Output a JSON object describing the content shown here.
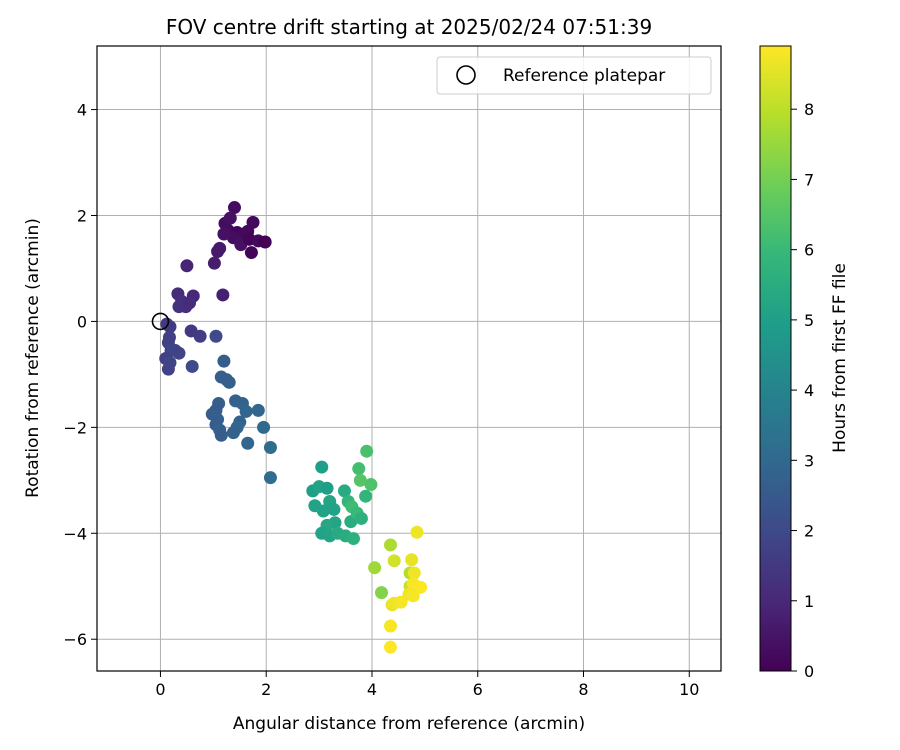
{
  "chart_data": {
    "type": "scatter",
    "title": "FOV centre drift starting at 2025/02/24 07:51:39",
    "xlabel": "Angular distance from reference (arcmin)",
    "ylabel": "Rotation from reference (arcmin)",
    "xlim": [
      -1.2,
      10.6
    ],
    "ylim": [
      -6.6,
      5.2
    ],
    "xticks": [
      0,
      2,
      4,
      6,
      8,
      10
    ],
    "yticks": [
      -6,
      -4,
      -2,
      0,
      2,
      4
    ],
    "xtick_labels": [
      "0",
      "2",
      "4",
      "6",
      "8",
      "10"
    ],
    "ytick_labels": [
      "−6",
      "−4",
      "−2",
      "0",
      "2",
      "4"
    ],
    "grid": true,
    "legend": {
      "position": "top-right",
      "entries": [
        "Reference platepar"
      ]
    },
    "reference_point": {
      "x": 0,
      "y": 0
    },
    "colorbar": {
      "label": "Hours from first FF file",
      "min": 0,
      "max": 8.9,
      "ticks": [
        0,
        1,
        2,
        3,
        4,
        5,
        6,
        7,
        8
      ],
      "tick_labels": [
        "0",
        "1",
        "2",
        "3",
        "4",
        "5",
        "6",
        "7",
        "8"
      ],
      "colormap": "viridis",
      "colors": [
        "#440154",
        "#482878",
        "#3e4989",
        "#31688e",
        "#26828e",
        "#1f9e89",
        "#35b779",
        "#6ece58",
        "#b5de2b",
        "#fde725"
      ]
    },
    "points": [
      {
        "x": 1.4,
        "y": 2.15,
        "h": 0.3
      },
      {
        "x": 1.22,
        "y": 1.85,
        "h": 0.3
      },
      {
        "x": 1.32,
        "y": 1.95,
        "h": 0.4
      },
      {
        "x": 1.75,
        "y": 1.87,
        "h": 0.2
      },
      {
        "x": 1.28,
        "y": 1.72,
        "h": 0.3
      },
      {
        "x": 1.45,
        "y": 1.68,
        "h": 0.1
      },
      {
        "x": 1.55,
        "y": 1.62,
        "h": 0.2
      },
      {
        "x": 1.65,
        "y": 1.7,
        "h": 0.2
      },
      {
        "x": 1.38,
        "y": 1.58,
        "h": 0.3
      },
      {
        "x": 1.52,
        "y": 1.45,
        "h": 0.4
      },
      {
        "x": 1.68,
        "y": 1.55,
        "h": 0.1
      },
      {
        "x": 1.85,
        "y": 1.52,
        "h": 0.2
      },
      {
        "x": 1.98,
        "y": 1.5,
        "h": 0.0
      },
      {
        "x": 1.72,
        "y": 1.3,
        "h": 0.1
      },
      {
        "x": 1.2,
        "y": 1.65,
        "h": 0.4
      },
      {
        "x": 1.12,
        "y": 1.38,
        "h": 0.6
      },
      {
        "x": 1.08,
        "y": 1.32,
        "h": 0.6
      },
      {
        "x": 1.02,
        "y": 1.1,
        "h": 0.7
      },
      {
        "x": 0.5,
        "y": 1.05,
        "h": 0.9
      },
      {
        "x": 1.18,
        "y": 0.5,
        "h": 0.8
      },
      {
        "x": 0.33,
        "y": 0.52,
        "h": 1.1
      },
      {
        "x": 0.62,
        "y": 0.48,
        "h": 1.0
      },
      {
        "x": 0.4,
        "y": 0.38,
        "h": 1.2
      },
      {
        "x": 0.35,
        "y": 0.28,
        "h": 1.3
      },
      {
        "x": 0.48,
        "y": 0.28,
        "h": 1.2
      },
      {
        "x": 0.55,
        "y": 0.35,
        "h": 1.1
      },
      {
        "x": 0.18,
        "y": -0.1,
        "h": 1.6
      },
      {
        "x": 0.12,
        "y": -0.05,
        "h": 1.5
      },
      {
        "x": 0.17,
        "y": -0.3,
        "h": 1.7
      },
      {
        "x": 0.15,
        "y": -0.4,
        "h": 1.7
      },
      {
        "x": 0.58,
        "y": -0.18,
        "h": 1.5
      },
      {
        "x": 0.75,
        "y": -0.28,
        "h": 1.6
      },
      {
        "x": 1.05,
        "y": -0.28,
        "h": 2.0
      },
      {
        "x": 0.2,
        "y": -0.55,
        "h": 1.8
      },
      {
        "x": 0.28,
        "y": -0.55,
        "h": 1.9
      },
      {
        "x": 0.35,
        "y": -0.6,
        "h": 1.8
      },
      {
        "x": 0.1,
        "y": -0.7,
        "h": 1.7
      },
      {
        "x": 0.18,
        "y": -0.78,
        "h": 1.9
      },
      {
        "x": 0.15,
        "y": -0.9,
        "h": 1.8
      },
      {
        "x": 0.6,
        "y": -0.85,
        "h": 2.0
      },
      {
        "x": 1.2,
        "y": -0.75,
        "h": 2.6
      },
      {
        "x": 1.15,
        "y": -1.05,
        "h": 2.7
      },
      {
        "x": 1.25,
        "y": -1.1,
        "h": 2.6
      },
      {
        "x": 1.3,
        "y": -1.15,
        "h": 2.7
      },
      {
        "x": 1.1,
        "y": -1.55,
        "h": 2.6
      },
      {
        "x": 1.05,
        "y": -1.68,
        "h": 2.6
      },
      {
        "x": 0.98,
        "y": -1.75,
        "h": 2.6
      },
      {
        "x": 1.08,
        "y": -1.85,
        "h": 2.7
      },
      {
        "x": 1.05,
        "y": -1.95,
        "h": 2.6
      },
      {
        "x": 1.12,
        "y": -2.05,
        "h": 2.7
      },
      {
        "x": 1.15,
        "y": -2.15,
        "h": 2.6
      },
      {
        "x": 1.42,
        "y": -1.5,
        "h": 2.8
      },
      {
        "x": 1.55,
        "y": -1.55,
        "h": 2.8
      },
      {
        "x": 1.62,
        "y": -1.7,
        "h": 2.9
      },
      {
        "x": 1.5,
        "y": -1.9,
        "h": 2.8
      },
      {
        "x": 1.45,
        "y": -2.0,
        "h": 2.9
      },
      {
        "x": 1.38,
        "y": -2.1,
        "h": 2.8
      },
      {
        "x": 1.85,
        "y": -1.68,
        "h": 2.9
      },
      {
        "x": 1.65,
        "y": -2.3,
        "h": 2.9
      },
      {
        "x": 1.95,
        "y": -2.0,
        "h": 3.0
      },
      {
        "x": 2.08,
        "y": -2.38,
        "h": 3.1
      },
      {
        "x": 2.08,
        "y": -2.95,
        "h": 3.1
      },
      {
        "x": 3.05,
        "y": -2.75,
        "h": 5.0
      },
      {
        "x": 2.88,
        "y": -3.2,
        "h": 5.0
      },
      {
        "x": 3.0,
        "y": -3.12,
        "h": 5.1
      },
      {
        "x": 3.15,
        "y": -3.15,
        "h": 5.0
      },
      {
        "x": 2.92,
        "y": -3.48,
        "h": 5.1
      },
      {
        "x": 3.08,
        "y": -3.58,
        "h": 5.1
      },
      {
        "x": 3.2,
        "y": -3.4,
        "h": 5.2
      },
      {
        "x": 3.28,
        "y": -3.55,
        "h": 5.1
      },
      {
        "x": 3.3,
        "y": -3.8,
        "h": 5.2
      },
      {
        "x": 3.15,
        "y": -3.85,
        "h": 5.3
      },
      {
        "x": 3.05,
        "y": -4.0,
        "h": 5.1
      },
      {
        "x": 3.2,
        "y": -4.05,
        "h": 5.2
      },
      {
        "x": 3.35,
        "y": -4.0,
        "h": 5.4
      },
      {
        "x": 3.5,
        "y": -4.05,
        "h": 5.5
      },
      {
        "x": 3.65,
        "y": -4.1,
        "h": 5.6
      },
      {
        "x": 3.48,
        "y": -3.2,
        "h": 5.4
      },
      {
        "x": 3.55,
        "y": -3.4,
        "h": 5.8
      },
      {
        "x": 3.62,
        "y": -3.5,
        "h": 6.1
      },
      {
        "x": 3.6,
        "y": -3.78,
        "h": 5.5
      },
      {
        "x": 3.72,
        "y": -3.62,
        "h": 6.0
      },
      {
        "x": 3.8,
        "y": -3.72,
        "h": 5.6
      },
      {
        "x": 3.75,
        "y": -2.78,
        "h": 6.2
      },
      {
        "x": 3.88,
        "y": -3.3,
        "h": 5.8
      },
      {
        "x": 3.78,
        "y": -3.0,
        "h": 6.5
      },
      {
        "x": 3.9,
        "y": -2.45,
        "h": 6.3
      },
      {
        "x": 3.98,
        "y": -3.08,
        "h": 6.4
      },
      {
        "x": 4.05,
        "y": -4.65,
        "h": 7.6
      },
      {
        "x": 4.18,
        "y": -5.12,
        "h": 7.2
      },
      {
        "x": 4.35,
        "y": -4.22,
        "h": 7.8
      },
      {
        "x": 4.42,
        "y": -4.52,
        "h": 8.3
      },
      {
        "x": 4.38,
        "y": -5.35,
        "h": 8.6
      },
      {
        "x": 4.42,
        "y": -5.32,
        "h": 8.7
      },
      {
        "x": 4.55,
        "y": -5.3,
        "h": 8.8
      },
      {
        "x": 4.35,
        "y": -5.75,
        "h": 8.8
      },
      {
        "x": 4.35,
        "y": -6.15,
        "h": 8.9
      },
      {
        "x": 4.72,
        "y": -4.75,
        "h": 7.9
      },
      {
        "x": 4.75,
        "y": -4.5,
        "h": 8.6
      },
      {
        "x": 4.8,
        "y": -4.75,
        "h": 8.7
      },
      {
        "x": 4.72,
        "y": -5.0,
        "h": 8.1
      },
      {
        "x": 4.85,
        "y": -3.98,
        "h": 8.7
      },
      {
        "x": 4.78,
        "y": -4.95,
        "h": 8.8
      },
      {
        "x": 4.92,
        "y": -5.02,
        "h": 8.9
      },
      {
        "x": 4.7,
        "y": -5.15,
        "h": 8.7
      },
      {
        "x": 4.78,
        "y": -5.18,
        "h": 8.8
      }
    ]
  }
}
